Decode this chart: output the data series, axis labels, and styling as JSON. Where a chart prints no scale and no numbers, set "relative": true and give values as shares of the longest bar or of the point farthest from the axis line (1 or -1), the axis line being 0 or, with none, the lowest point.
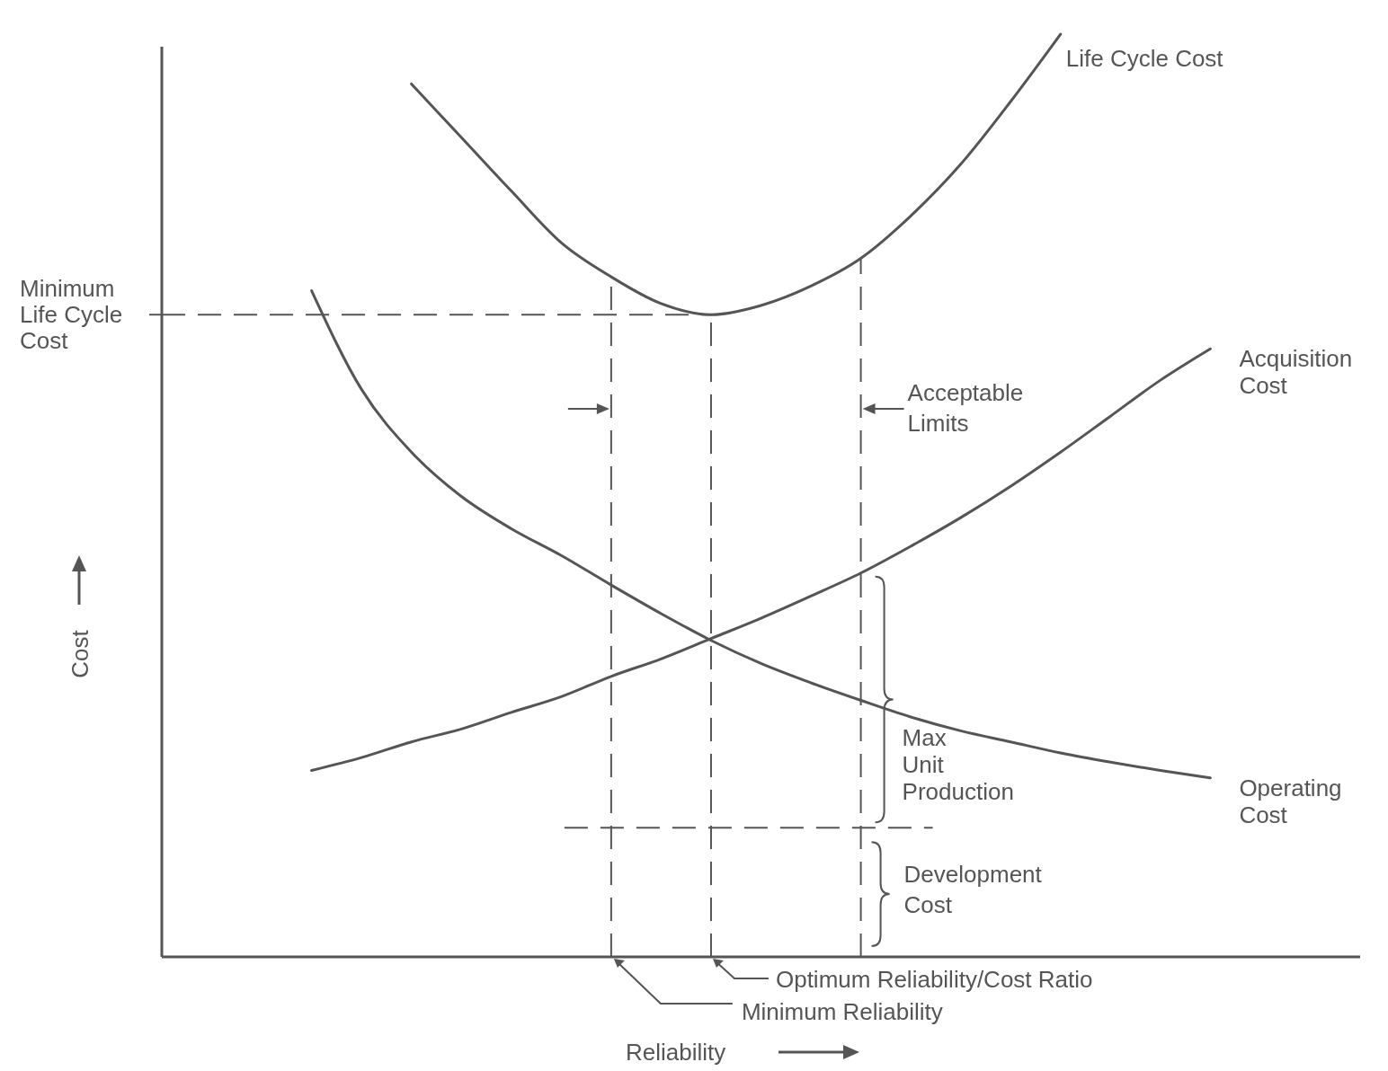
{
  "chart_data": {
    "type": "line",
    "relative": true,
    "xlabel": "Reliability",
    "ylabel": "Cost",
    "marker": "none",
    "line_style": "solid",
    "categories": [
      null,
      null,
      null,
      null,
      null,
      null,
      null,
      null,
      null,
      null,
      null,
      null,
      null,
      null,
      null,
      null,
      null,
      null,
      null,
      null,
      null,
      null,
      null,
      null,
      null
    ],
    "series": [
      {
        "name": "Life Cycle Cost",
        "color": "#555555",
        "values": [
          null,
          null,
          null,
          null,
          null,
          0.946,
          0.888,
          0.83,
          0.774,
          0.737,
          0.708,
          0.696,
          0.706,
          0.727,
          0.757,
          0.803,
          0.859,
          0.927,
          1,
          null,
          null,
          null,
          null,
          null,
          null
        ]
      },
      {
        "name": "Acquisition Cost",
        "color": "#555555",
        "values": [
          null,
          null,
          null,
          0.202,
          0.216,
          0.233,
          0.247,
          0.265,
          0.282,
          0.304,
          0.323,
          0.345,
          0.367,
          0.391,
          0.416,
          0.445,
          0.476,
          0.51,
          0.547,
          0.586,
          0.625,
          0.659,
          null,
          null,
          null
        ]
      },
      {
        "name": "Operating Cost",
        "color": "#555555",
        "values": [
          null,
          null,
          null,
          0.722,
          0.615,
          0.547,
          0.499,
          0.464,
          0.435,
          0.403,
          0.372,
          0.343,
          0.318,
          0.297,
          0.278,
          0.26,
          0.245,
          0.233,
          0.221,
          0.211,
          0.202,
          0.194,
          null,
          null,
          null
        ]
      }
    ],
    "ref_lines": [
      {
        "axis": "y",
        "value": 0.696,
        "label": "Minimum Life Cycle Cost",
        "line_style": "dashed",
        "color": "#555555"
      },
      {
        "axis": "y",
        "value": 0.14,
        "line_style": "dashed",
        "color": "#555555"
      }
    ],
    "annotations": [
      "Acceptable Limits",
      "Max Unit Production",
      "Development Cost",
      "Optimum Reliability/Cost Ratio",
      "Minimum Reliability"
    ]
  }
}
